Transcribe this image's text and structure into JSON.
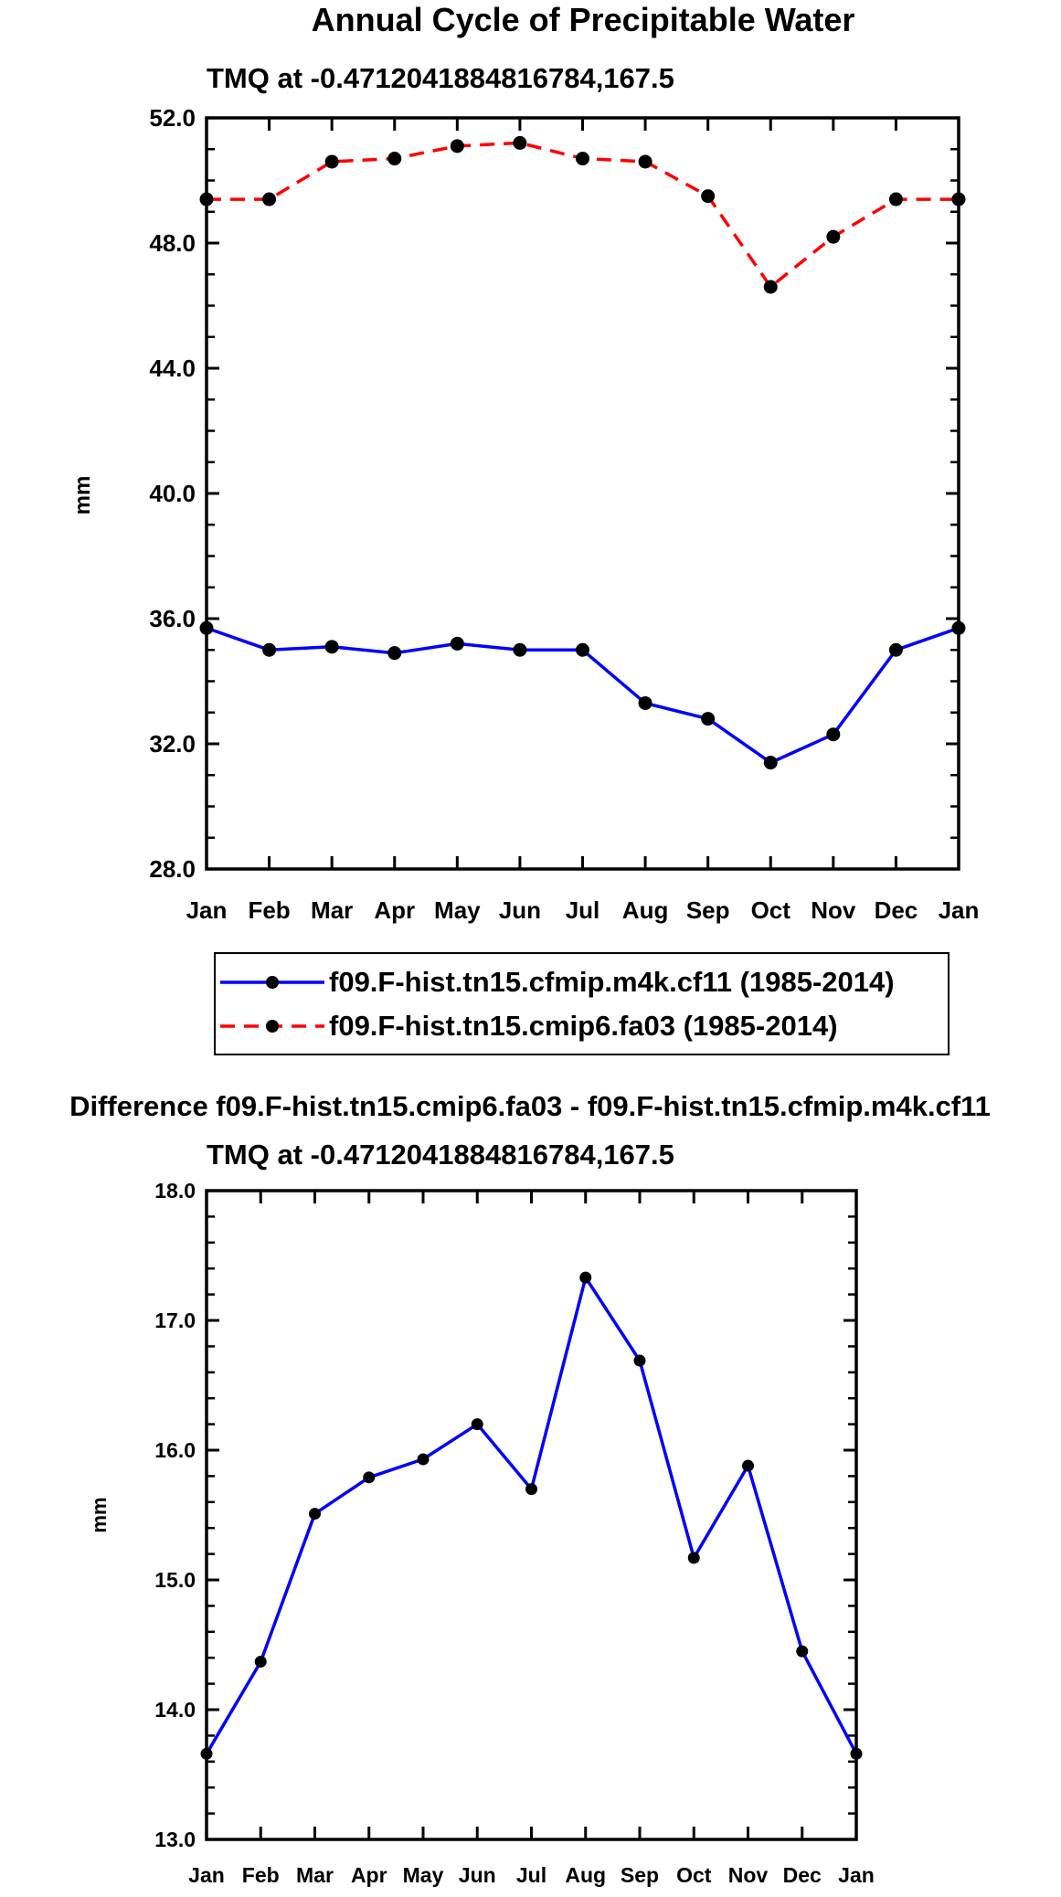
{
  "chart_data": [
    {
      "type": "line",
      "title": "Annual Cycle of Precipitable Water",
      "subtitle": "TMQ at -0.4712041884816784,167.5",
      "ylabel": "mm",
      "xlabel": "",
      "ylim": [
        28.0,
        52.0
      ],
      "y_ticks": [
        "28.0",
        "32.0",
        "36.0",
        "40.0",
        "44.0",
        "48.0",
        "52.0"
      ],
      "categories": [
        "Jan",
        "Feb",
        "Mar",
        "Apr",
        "May",
        "Jun",
        "Jul",
        "Aug",
        "Sep",
        "Oct",
        "Nov",
        "Dec",
        "Jan"
      ],
      "series": [
        {
          "name": "f09.F-hist.tn15.cfmip.m4k.cf11 (1985-2014)",
          "color": "#0000ff",
          "dash": "solid",
          "values": [
            35.7,
            35.0,
            35.1,
            34.9,
            35.2,
            35.0,
            35.0,
            33.3,
            32.8,
            31.4,
            32.3,
            35.0,
            35.7
          ]
        },
        {
          "name": "f09.F-hist.tn15.cmip6.fa03 (1985-2014)",
          "color": "#ff0000",
          "dash": "dashed",
          "values": [
            49.4,
            49.4,
            50.6,
            50.7,
            51.1,
            51.2,
            50.7,
            50.6,
            49.5,
            46.6,
            48.2,
            49.4,
            49.4
          ]
        }
      ]
    },
    {
      "type": "line",
      "title": "Difference f09.F-hist.tn15.cmip6.fa03 - f09.F-hist.tn15.cfmip.m4k.cf11",
      "subtitle": "TMQ at -0.4712041884816784,167.5",
      "ylabel": "mm",
      "xlabel": "",
      "ylim": [
        13.0,
        18.0
      ],
      "y_ticks": [
        "13.0",
        "14.0",
        "15.0",
        "16.0",
        "17.0",
        "18.0"
      ],
      "categories": [
        "Jan",
        "Feb",
        "Mar",
        "Apr",
        "May",
        "Jun",
        "Jul",
        "Aug",
        "Sep",
        "Oct",
        "Nov",
        "Dec",
        "Jan"
      ],
      "series": [
        {
          "name": "Difference",
          "color": "#0000ff",
          "dash": "solid",
          "values": [
            13.66,
            14.37,
            15.51,
            15.79,
            15.93,
            16.2,
            15.7,
            17.33,
            16.69,
            15.17,
            15.88,
            14.45,
            13.66
          ]
        }
      ]
    }
  ]
}
